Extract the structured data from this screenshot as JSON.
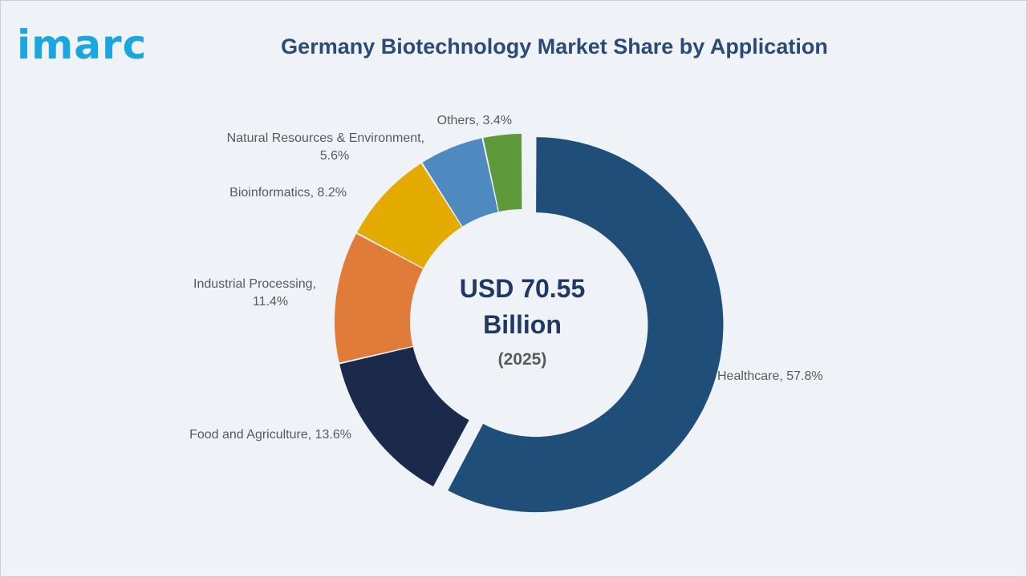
{
  "header": {
    "logo_text": "imarc",
    "title": "Germany Biotechnology Market Share by Application"
  },
  "chart_data": {
    "type": "pie",
    "variant": "donut",
    "title": "Germany Biotechnology Market Share by Application",
    "center_text": [
      "USD 70.55",
      "Billion",
      "(2025)"
    ],
    "unit": "%",
    "slices": [
      {
        "label": "Healthcare, 57.8%",
        "name": "Healthcare",
        "value": 57.8,
        "color": "#1f4e79",
        "exploded": true
      },
      {
        "label": "Food and Agriculture, 13.6%",
        "name": "Food and Agriculture",
        "value": 13.6,
        "color": "#1b2a4a",
        "exploded": false
      },
      {
        "label": "Industrial Processing, 11.4%",
        "name": "Industrial Processing",
        "value": 11.4,
        "color": "#e07b39",
        "exploded": false
      },
      {
        "label": "Bioinformatics, 8.2%",
        "name": "Bioinformatics",
        "value": 8.2,
        "color": "#e3ab00",
        "exploded": false
      },
      {
        "label": "Natural Resources & Environment, 5.6%",
        "name": "Natural Resources & Environment",
        "value": 5.6,
        "color": "#4e8ac0",
        "exploded": false
      },
      {
        "label": "Others, 3.4%",
        "name": "Others",
        "value": 3.4,
        "color": "#5e9a3c",
        "exploded": false
      }
    ]
  }
}
